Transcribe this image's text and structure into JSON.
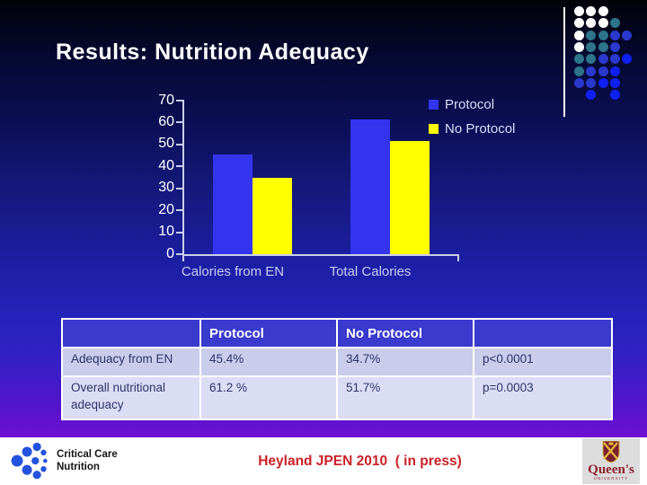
{
  "slide": {
    "title": "Results: Nutrition Adequacy"
  },
  "chart_data": {
    "type": "bar",
    "title": "",
    "categories": [
      "Calories from EN",
      "Total Calories"
    ],
    "series": [
      {
        "name": "Protocol",
        "color": "#3434ee",
        "values": [
          45.4,
          61.2
        ]
      },
      {
        "name": "No Protocol",
        "color": "#ffff00",
        "values": [
          34.7,
          51.7
        ]
      }
    ],
    "ylim": [
      0,
      70
    ],
    "ytick_step": 10,
    "xlabel": "",
    "ylabel": "",
    "legend_position": "top-right",
    "grid": false
  },
  "table": {
    "headers": [
      "",
      "Protocol",
      "No Protocol",
      ""
    ],
    "rows": [
      [
        "Adequacy from EN",
        "45.4%",
        "34.7%",
        "p<0.0001"
      ],
      [
        "Overall nutritional adequacy",
        "61.2 %",
        "51.7%",
        "p=0.0003"
      ]
    ]
  },
  "footer": {
    "left_logo": {
      "line1": "Critical Care",
      "line2": "Nutrition"
    },
    "citation": "Heyland JPEN 2010  ( in press)",
    "right_logo": {
      "name": "Queen's",
      "sub": "UNIVERSITY"
    }
  },
  "decor": {
    "dot_palette": {
      "W": "#ffffff",
      "T": "#2d7489",
      "B": "#2a38cc",
      "F": "#1120f2"
    },
    "dot_grid": [
      "WWW..",
      "WWWT.",
      "WTTBB",
      "WTTB.",
      "TTBBF",
      "TBBF.",
      "BBFF.",
      ".F.F."
    ]
  },
  "colors": {
    "axis": "#c8cfea",
    "header_bg": "#3a3ace",
    "citation_red": "#cb2128"
  }
}
